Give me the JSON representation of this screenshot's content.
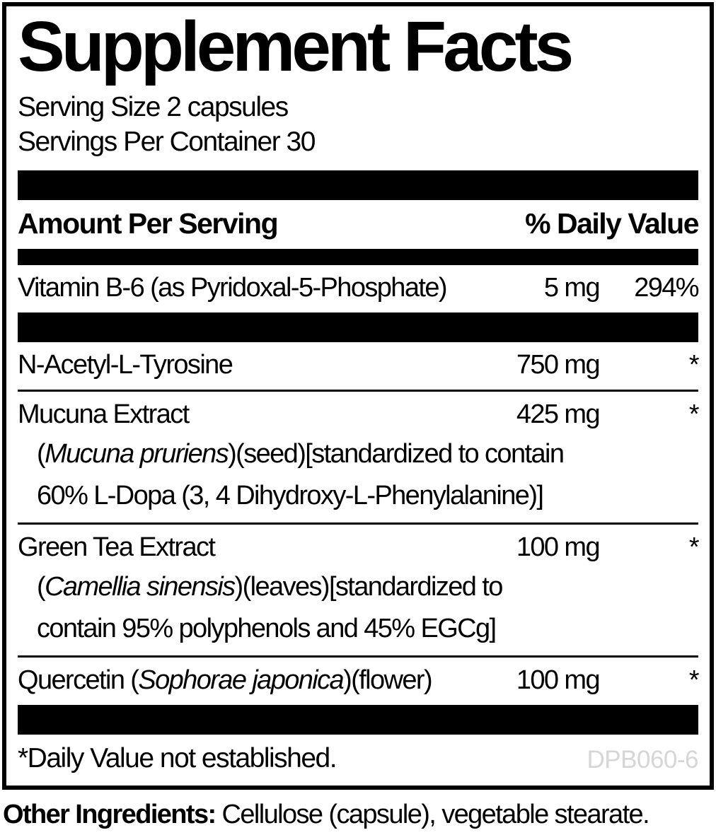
{
  "panel": {
    "title": "Supplement Facts",
    "serving_size": "Serving Size 2 capsules",
    "servings_per_container": "Servings Per Container 30",
    "columns": {
      "amount_header": "Amount Per Serving",
      "dv_header": "% Daily Value"
    },
    "dv_rows": [
      {
        "name": [
          {
            "t": "Vitamin B-6 (as Pyridoxal-5-Phosphate)"
          }
        ],
        "amount": "5 mg",
        "dv": "294%"
      }
    ],
    "starred_rows": [
      {
        "name": [
          {
            "t": "N-Acetyl-L-Tyrosine"
          }
        ],
        "amount": "750 mg",
        "dv": "*"
      },
      {
        "name": [
          {
            "t": "Mucuna Extract"
          }
        ],
        "amount": "425 mg",
        "dv": "*",
        "details": [
          [
            {
              "t": "("
            },
            {
              "t": "Mucuna pruriens",
              "i": true
            },
            {
              "t": ")(seed)[standardized to contain"
            }
          ],
          [
            {
              "t": "60% L-Dopa (3, 4 Dihydroxy-L-Phenylalanine)]"
            }
          ]
        ]
      },
      {
        "name": [
          {
            "t": "Green Tea Extract"
          }
        ],
        "amount": "100 mg",
        "dv": "*",
        "details": [
          [
            {
              "t": "("
            },
            {
              "t": "Camellia sinensis",
              "i": true
            },
            {
              "t": ")(leaves)[standardized to"
            }
          ],
          [
            {
              "t": "contain 95% polyphenols and 45% EGCg]"
            }
          ]
        ]
      },
      {
        "name": [
          {
            "t": "Quercetin ("
          },
          {
            "t": "Sophorae japonica",
            "i": true
          },
          {
            "t": ")(flower)"
          }
        ],
        "amount": "100 mg",
        "dv": "*"
      }
    ],
    "footnote": "*Daily Value not established.",
    "product_code": "DPB060-6",
    "colors": {
      "ink": "#000000",
      "background": "#ffffff",
      "code_gray": "#d6d6d6"
    }
  },
  "other_ingredients": {
    "label": "Other Ingredients:",
    "text": " Cellulose (capsule), vegetable stearate."
  }
}
